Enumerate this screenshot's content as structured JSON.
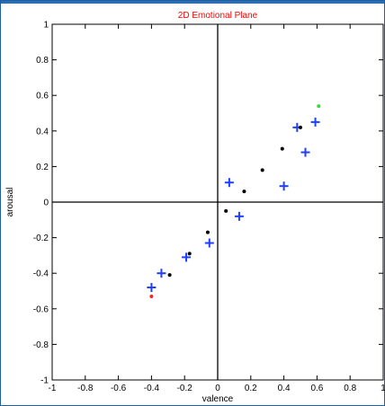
{
  "chart_data": {
    "type": "scatter",
    "title": "2D Emotional Plane",
    "xlabel": "valence",
    "ylabel": "arousal",
    "xlim": [
      -1,
      1
    ],
    "ylim": [
      -1,
      1
    ],
    "xticks": [
      "-1",
      "-0.8",
      "-0.6",
      "-0.4",
      "-0.2",
      "0",
      "0.2",
      "0.4",
      "0.6",
      "0.8",
      "1"
    ],
    "yticks": [
      "1",
      "0.8",
      "0.6",
      "0.4",
      "0.2",
      "0",
      "-0.2",
      "-0.4",
      "-0.6",
      "-0.8",
      "-1"
    ],
    "grid": false,
    "series": [
      {
        "marker": "plus",
        "color": "#1f3fff",
        "points": [
          {
            "x": -0.4,
            "y": -0.48
          },
          {
            "x": -0.34,
            "y": -0.4
          },
          {
            "x": -0.19,
            "y": -0.31
          },
          {
            "x": -0.05,
            "y": -0.23
          },
          {
            "x": 0.07,
            "y": 0.11
          },
          {
            "x": 0.13,
            "y": -0.08
          },
          {
            "x": 0.4,
            "y": 0.09
          },
          {
            "x": 0.48,
            "y": 0.42
          },
          {
            "x": 0.53,
            "y": 0.28
          },
          {
            "x": 0.59,
            "y": 0.45
          }
        ]
      },
      {
        "marker": "dot",
        "color": "#000000",
        "points": [
          {
            "x": -0.29,
            "y": -0.41
          },
          {
            "x": -0.17,
            "y": -0.29
          },
          {
            "x": -0.06,
            "y": -0.17
          },
          {
            "x": 0.05,
            "y": -0.05
          },
          {
            "x": 0.16,
            "y": 0.06
          },
          {
            "x": 0.27,
            "y": 0.18
          },
          {
            "x": 0.39,
            "y": 0.3
          },
          {
            "x": 0.5,
            "y": 0.42
          }
        ]
      },
      {
        "marker": "dot",
        "color": "#ff2020",
        "points": [
          {
            "x": -0.4,
            "y": -0.53
          }
        ]
      },
      {
        "marker": "dot",
        "color": "#33dd33",
        "points": [
          {
            "x": 0.61,
            "y": 0.54
          }
        ]
      }
    ],
    "colors": {
      "title": "#ff0000",
      "axes": "#000000",
      "frame": "#1f5f9e"
    }
  }
}
